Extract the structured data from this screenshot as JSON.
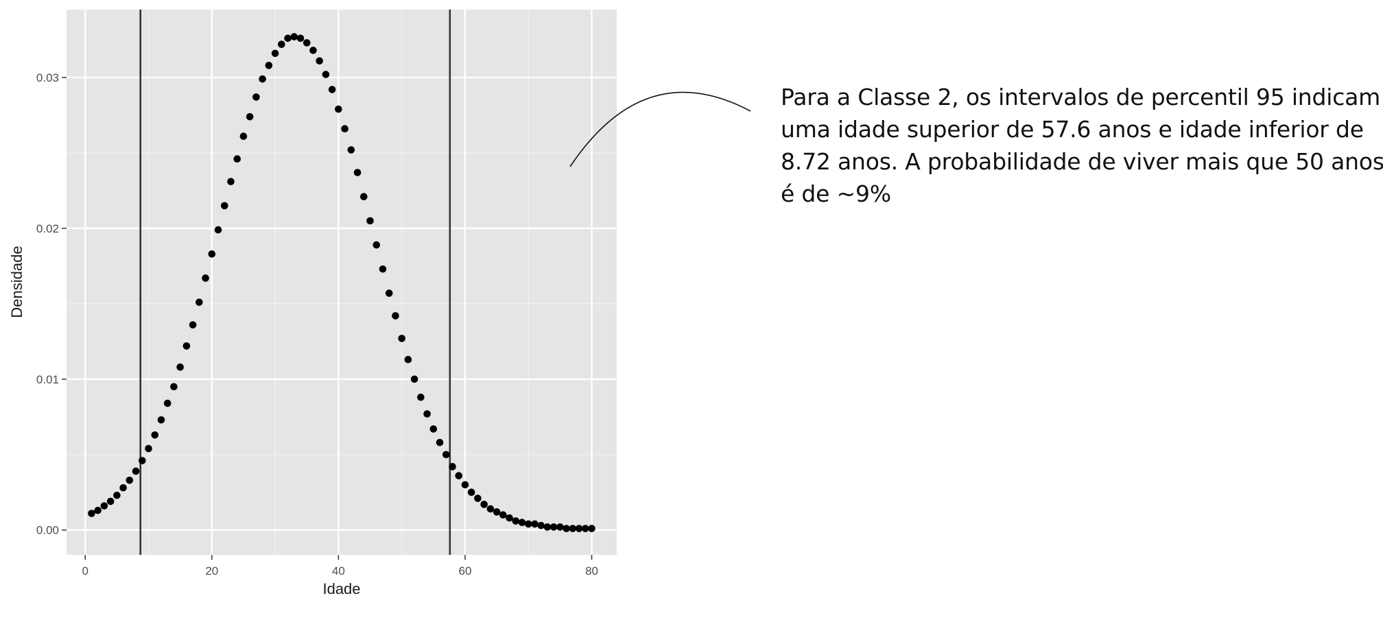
{
  "chart_data": {
    "type": "scatter",
    "title": "",
    "xlabel": "Idade",
    "ylabel": "Densidade",
    "xlim": [
      -2.95,
      83.95
    ],
    "ylim": [
      -0.00165,
      0.0345
    ],
    "x_ticks": [
      0,
      20,
      40,
      60,
      80
    ],
    "x_tick_labels": [
      "0",
      "20",
      "40",
      "60",
      "80"
    ],
    "y_ticks": [
      0.0,
      0.01,
      0.02,
      0.03
    ],
    "y_tick_labels": [
      "0.00",
      "0.01",
      "0.02",
      "0.03"
    ],
    "grid": true,
    "background": "#e5e5e5",
    "vlines": [
      8.72,
      57.6
    ],
    "x": [
      1,
      2,
      3,
      4,
      5,
      6,
      7,
      8,
      9,
      10,
      11,
      12,
      13,
      14,
      15,
      16,
      17,
      18,
      19,
      20,
      21,
      22,
      23,
      24,
      25,
      26,
      27,
      28,
      29,
      30,
      31,
      32,
      33,
      34,
      35,
      36,
      37,
      38,
      39,
      40,
      41,
      42,
      43,
      44,
      45,
      46,
      47,
      48,
      49,
      50,
      51,
      52,
      53,
      54,
      55,
      56,
      57,
      58,
      59,
      60,
      61,
      62,
      63,
      64,
      65,
      66,
      67,
      68,
      69,
      70,
      71,
      72,
      73,
      74,
      75,
      76,
      77,
      78,
      79,
      80
    ],
    "y": [
      0.0011,
      0.0013,
      0.0016,
      0.0019,
      0.0023,
      0.0028,
      0.0033,
      0.0039,
      0.0046,
      0.0054,
      0.0063,
      0.0073,
      0.0084,
      0.0095,
      0.0108,
      0.0122,
      0.0136,
      0.0151,
      0.0167,
      0.0183,
      0.0199,
      0.0215,
      0.0231,
      0.0246,
      0.0261,
      0.0274,
      0.0287,
      0.0299,
      0.0308,
      0.0316,
      0.0322,
      0.0326,
      0.0327,
      0.0326,
      0.0323,
      0.0318,
      0.0311,
      0.0302,
      0.0292,
      0.0279,
      0.0266,
      0.0252,
      0.0237,
      0.0221,
      0.0205,
      0.0189,
      0.0173,
      0.0157,
      0.0142,
      0.0127,
      0.0113,
      0.01,
      0.0088,
      0.0077,
      0.0067,
      0.0058,
      0.005,
      0.0042,
      0.0036,
      0.003,
      0.0025,
      0.0021,
      0.0017,
      0.0014,
      0.0012,
      0.001,
      0.0008,
      0.0006,
      0.0005,
      0.0004,
      0.0004,
      0.0003,
      0.0002,
      0.0002,
      0.0002,
      0.0001,
      0.0001,
      0.0001,
      0.0001,
      0.0001
    ]
  },
  "annotation": {
    "lines": [
      "Para a Classe 2, os intervalos de percentil 95 indicam",
      "uma idade superior de 57.6 anos e idade inferior de",
      "8.72 anos. A probabilidade de viver mais que 50 anos",
      "é de ~9%"
    ]
  },
  "colors": {
    "panel": "#e5e5e5",
    "grid_major": "#ffffff",
    "grid_minor": "#f2f2f2",
    "points": "#000000",
    "vline": "#333333"
  }
}
